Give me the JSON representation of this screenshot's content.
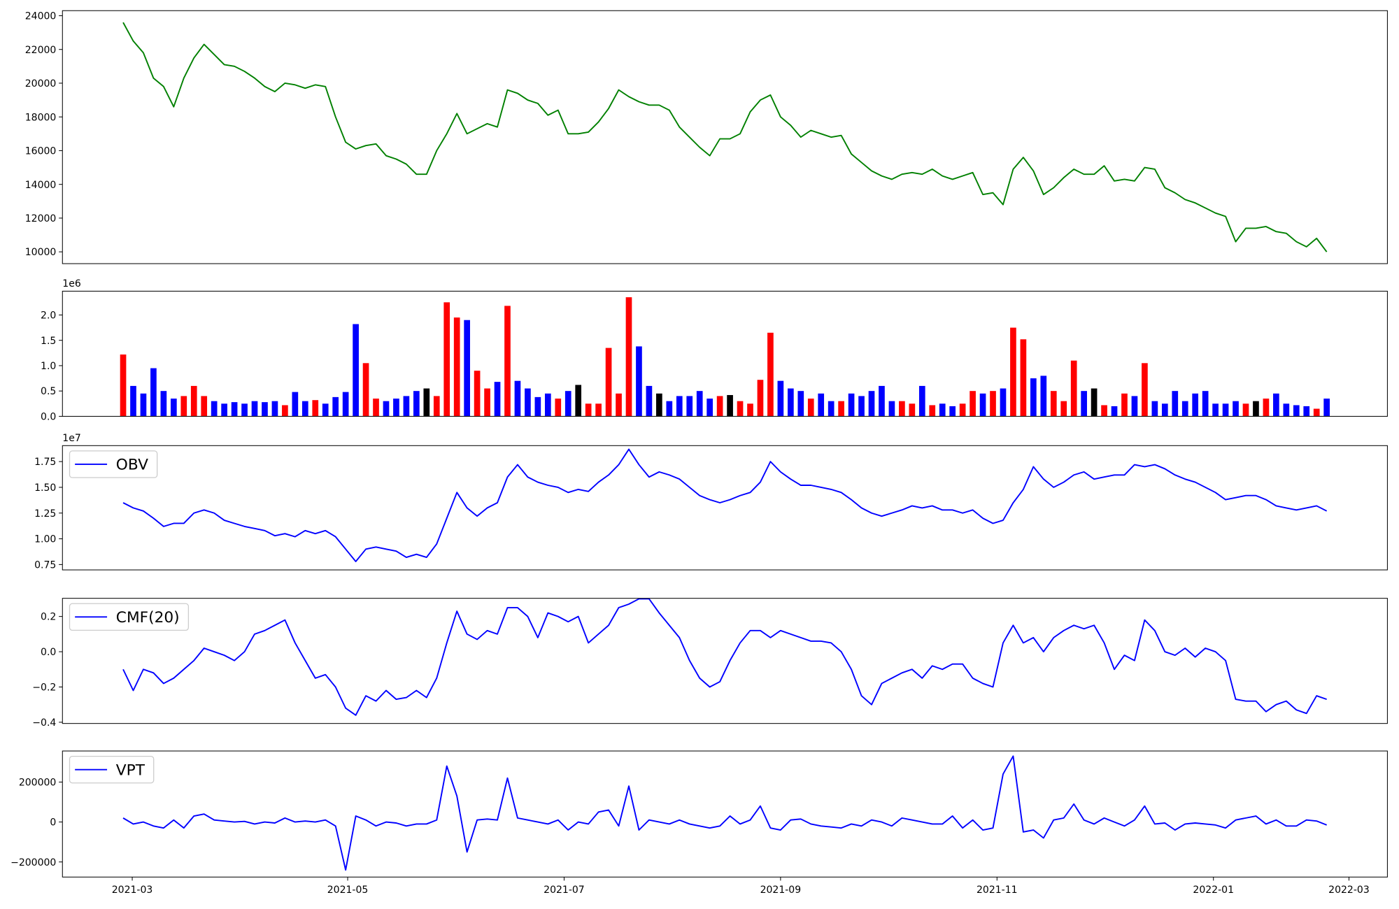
{
  "chart_data": [
    {
      "type": "line",
      "series": [
        {
          "color": "green",
          "values": [
            23600,
            22500,
            21800,
            20300,
            19800,
            18600,
            20300,
            21500,
            22300,
            21700,
            21100,
            21000,
            20700,
            20300,
            19800,
            19500,
            20000,
            19900,
            19700,
            19900,
            19800,
            18000,
            16500,
            16100,
            16300,
            16400,
            15700,
            15500,
            15200,
            14600,
            14600,
            16000,
            17000,
            18200,
            17000,
            17300,
            17600,
            17400,
            19600,
            19400,
            19000,
            18800,
            18100,
            18400,
            17000,
            17000,
            17100,
            17700,
            18500,
            19600,
            19200,
            18900,
            18700,
            18700,
            18400,
            17400,
            16800,
            16200,
            15700,
            16700,
            16700,
            17000,
            18300,
            19000,
            19300,
            18000,
            17500,
            16800,
            17200,
            17000,
            16800,
            16900,
            15800,
            15300,
            14800,
            14500,
            14300,
            14600,
            14700,
            14600,
            14900,
            14500,
            14300,
            14500,
            14700,
            13400,
            13500,
            12800,
            14900,
            15600,
            14800,
            13400,
            13800,
            14400,
            14900,
            14600,
            14600,
            15100,
            14200,
            14300,
            14200,
            15000,
            14900,
            13800,
            13500,
            13100,
            12900,
            12600,
            12300,
            12100,
            10600,
            11400,
            11400,
            11500,
            11200,
            11100,
            10600,
            10300,
            10800,
            10000
          ]
        }
      ],
      "xlim": [
        -6,
        125
      ],
      "ylim": [
        9300,
        24300
      ],
      "yticks": [
        10000,
        12000,
        14000,
        16000,
        18000,
        20000,
        22000,
        24000
      ]
    },
    {
      "type": "bar",
      "offset_label": "1e6",
      "values": [
        1.22,
        0.6,
        0.45,
        0.95,
        0.5,
        0.35,
        0.4,
        0.6,
        0.4,
        0.3,
        0.25,
        0.28,
        0.25,
        0.3,
        0.28,
        0.3,
        0.22,
        0.48,
        0.3,
        0.32,
        0.25,
        0.38,
        0.48,
        1.82,
        1.05,
        0.35,
        0.3,
        0.35,
        0.4,
        0.5,
        0.55,
        0.4,
        2.25,
        1.95,
        1.9,
        0.9,
        0.55,
        0.68,
        2.18,
        0.7,
        0.55,
        0.38,
        0.45,
        0.35,
        0.5,
        0.62,
        0.25,
        0.25,
        1.35,
        0.45,
        2.35,
        1.38,
        0.6,
        0.45,
        0.3,
        0.4,
        0.4,
        0.5,
        0.35,
        0.4,
        0.42,
        0.3,
        0.25,
        0.72,
        1.65,
        0.7,
        0.55,
        0.5,
        0.35,
        0.45,
        0.3,
        0.3,
        0.45,
        0.4,
        0.5,
        0.6,
        0.3,
        0.3,
        0.25,
        0.6,
        0.22,
        0.25,
        0.2,
        0.25,
        0.5,
        0.45,
        0.5,
        0.55,
        1.75,
        1.52,
        0.75,
        0.8,
        0.5,
        0.3,
        1.1,
        0.5,
        0.55,
        0.22,
        0.2,
        0.45,
        0.4,
        1.05,
        0.3,
        0.25,
        0.5,
        0.3,
        0.45,
        0.5,
        0.25,
        0.25,
        0.3,
        0.25,
        0.3,
        0.35,
        0.45,
        0.25,
        0.22,
        0.2,
        0.15,
        0.35
      ],
      "colors": [
        "red",
        "blue",
        "blue",
        "blue",
        "blue",
        "blue",
        "red",
        "red",
        "red",
        "blue",
        "blue",
        "blue",
        "blue",
        "blue",
        "blue",
        "blue",
        "red",
        "blue",
        "blue",
        "red",
        "blue",
        "blue",
        "blue",
        "blue",
        "red",
        "red",
        "blue",
        "blue",
        "blue",
        "blue",
        "black",
        "red",
        "red",
        "red",
        "blue",
        "red",
        "red",
        "blue",
        "red",
        "blue",
        "blue",
        "blue",
        "blue",
        "red",
        "blue",
        "black",
        "red",
        "red",
        "red",
        "red",
        "red",
        "blue",
        "blue",
        "black",
        "blue",
        "blue",
        "blue",
        "blue",
        "blue",
        "red",
        "black",
        "red",
        "red",
        "red",
        "red",
        "blue",
        "blue",
        "blue",
        "red",
        "blue",
        "blue",
        "red",
        "blue",
        "blue",
        "blue",
        "blue",
        "blue",
        "red",
        "red",
        "blue",
        "red",
        "blue",
        "blue",
        "red",
        "red",
        "blue",
        "red",
        "blue",
        "red",
        "red",
        "blue",
        "blue",
        "red",
        "red",
        "red",
        "blue",
        "black",
        "red",
        "blue",
        "red",
        "blue",
        "red",
        "blue",
        "blue",
        "blue",
        "blue",
        "blue",
        "blue",
        "blue",
        "blue",
        "blue",
        "red",
        "black",
        "red",
        "blue",
        "blue",
        "blue",
        "blue",
        "red",
        "blue"
      ],
      "xlim": [
        -6,
        125
      ],
      "ylim": [
        0,
        2.47
      ],
      "yticks": [
        {
          "value": 0,
          "label": "0.0"
        },
        0.5,
        {
          "value": 1,
          "label": "1.0"
        },
        1.5,
        {
          "value": 2,
          "label": "2.0"
        }
      ]
    },
    {
      "type": "line",
      "offset_label": "1e7",
      "legend": "upper left",
      "series": [
        {
          "name": "OBV",
          "color": "blue",
          "values": [
            1.35,
            1.3,
            1.27,
            1.2,
            1.12,
            1.15,
            1.15,
            1.25,
            1.28,
            1.25,
            1.18,
            1.15,
            1.12,
            1.1,
            1.08,
            1.03,
            1.05,
            1.02,
            1.08,
            1.05,
            1.08,
            1.02,
            0.9,
            0.78,
            0.9,
            0.92,
            0.9,
            0.88,
            0.82,
            0.85,
            0.82,
            0.95,
            1.2,
            1.45,
            1.3,
            1.22,
            1.3,
            1.35,
            1.6,
            1.72,
            1.6,
            1.55,
            1.52,
            1.5,
            1.45,
            1.48,
            1.46,
            1.55,
            1.62,
            1.72,
            1.87,
            1.72,
            1.6,
            1.65,
            1.62,
            1.58,
            1.5,
            1.42,
            1.38,
            1.35,
            1.38,
            1.42,
            1.45,
            1.55,
            1.75,
            1.65,
            1.58,
            1.52,
            1.52,
            1.5,
            1.48,
            1.45,
            1.38,
            1.3,
            1.25,
            1.22,
            1.25,
            1.28,
            1.32,
            1.3,
            1.32,
            1.28,
            1.28,
            1.25,
            1.28,
            1.2,
            1.15,
            1.18,
            1.35,
            1.48,
            1.7,
            1.58,
            1.5,
            1.55,
            1.62,
            1.65,
            1.58,
            1.6,
            1.62,
            1.62,
            1.72,
            1.7,
            1.72,
            1.68,
            1.62,
            1.58,
            1.55,
            1.5,
            1.45,
            1.38,
            1.4,
            1.42,
            1.42,
            1.38,
            1.32,
            1.3,
            1.28,
            1.3,
            1.32,
            1.27
          ]
        }
      ],
      "xlim": [
        -6,
        125
      ],
      "ylim": [
        0.698,
        1.905
      ],
      "yticks": [
        0.75,
        {
          "value": 1,
          "label": "1.00"
        },
        1.25,
        {
          "value": 1.5,
          "label": "1.50"
        },
        1.75
      ]
    },
    {
      "type": "line",
      "legend": "upper left",
      "series": [
        {
          "name": "CMF(20)",
          "color": "blue",
          "values": [
            -0.1,
            -0.22,
            -0.1,
            -0.12,
            -0.18,
            -0.15,
            -0.1,
            -0.05,
            0.02,
            0.0,
            -0.02,
            -0.05,
            0.0,
            0.1,
            0.12,
            0.15,
            0.18,
            0.05,
            -0.05,
            -0.15,
            -0.13,
            -0.2,
            -0.32,
            -0.36,
            -0.25,
            -0.28,
            -0.22,
            -0.27,
            -0.26,
            -0.22,
            -0.26,
            -0.15,
            0.05,
            0.23,
            0.1,
            0.07,
            0.12,
            0.1,
            0.25,
            0.25,
            0.2,
            0.08,
            0.22,
            0.2,
            0.17,
            0.2,
            0.05,
            0.1,
            0.15,
            0.25,
            0.27,
            0.3,
            0.3,
            0.22,
            0.15,
            0.08,
            -0.05,
            -0.15,
            -0.2,
            -0.17,
            -0.05,
            0.05,
            0.12,
            0.12,
            0.08,
            0.12,
            0.1,
            0.08,
            0.06,
            0.06,
            0.05,
            0.0,
            -0.1,
            -0.25,
            -0.3,
            -0.18,
            -0.15,
            -0.12,
            -0.1,
            -0.15,
            -0.08,
            -0.1,
            -0.07,
            -0.07,
            -0.15,
            -0.18,
            -0.2,
            0.05,
            0.15,
            0.05,
            0.08,
            0.0,
            0.08,
            0.12,
            0.15,
            0.13,
            0.15,
            0.05,
            -0.1,
            -0.02,
            -0.05,
            0.18,
            0.12,
            0.0,
            -0.02,
            0.02,
            -0.03,
            0.02,
            0.0,
            -0.05,
            -0.27,
            -0.28,
            -0.28,
            -0.34,
            -0.3,
            -0.28,
            -0.33,
            -0.35,
            -0.25,
            -0.27
          ]
        }
      ],
      "xlim": [
        -6,
        125
      ],
      "ylim": [
        -0.407,
        0.303
      ],
      "yticks": [
        {
          "value": -0.4,
          "label": "−0.4"
        },
        {
          "value": -0.2,
          "label": "−0.2"
        },
        {
          "value": 0,
          "label": "0.0"
        },
        0.2
      ]
    },
    {
      "type": "line",
      "legend": "upper left",
      "series": [
        {
          "name": "VPT",
          "color": "blue",
          "values": [
            20000,
            -10000,
            0,
            -20000,
            -30000,
            10000,
            -30000,
            30000,
            40000,
            10000,
            5000,
            0,
            3000,
            -10000,
            0,
            -5000,
            20000,
            0,
            5000,
            0,
            10000,
            -20000,
            -240000,
            30000,
            10000,
            -20000,
            0,
            -5000,
            -20000,
            -10000,
            -10000,
            10000,
            280000,
            130000,
            -150000,
            10000,
            15000,
            10000,
            220000,
            20000,
            10000,
            0,
            -10000,
            10000,
            -40000,
            0,
            -10000,
            50000,
            60000,
            -20000,
            180000,
            -40000,
            10000,
            0,
            -10000,
            10000,
            -10000,
            -20000,
            -30000,
            -20000,
            30000,
            -10000,
            10000,
            80000,
            -30000,
            -40000,
            10000,
            15000,
            -10000,
            -20000,
            -25000,
            -30000,
            -10000,
            -20000,
            10000,
            0,
            -20000,
            20000,
            10000,
            0,
            -10000,
            -10000,
            30000,
            -30000,
            10000,
            -40000,
            -30000,
            240000,
            330000,
            -50000,
            -40000,
            -80000,
            10000,
            20000,
            90000,
            10000,
            -10000,
            20000,
            0,
            -20000,
            10000,
            80000,
            -10000,
            -5000,
            -40000,
            -10000,
            -5000,
            -10000,
            -15000,
            -30000,
            10000,
            20000,
            30000,
            -10000,
            10000,
            -20000,
            -20000,
            10000,
            5000,
            -15000
          ]
        }
      ],
      "xlim": [
        -6,
        125
      ],
      "ylim": [
        -275556,
        355556
      ],
      "yticks": [
        {
          "value": -200000,
          "label": "−200000"
        },
        0,
        200000
      ],
      "xticks": [
        {
          "value": 0.9,
          "label": "2021-03"
        },
        {
          "value": 22.2,
          "label": "2021-05"
        },
        {
          "value": 43.6,
          "label": "2021-07"
        },
        {
          "value": 65,
          "label": "2021-09"
        },
        {
          "value": 86.4,
          "label": "2021-11"
        },
        {
          "value": 107.8,
          "label": "2022-01"
        },
        {
          "value": 121.2,
          "label": "2022-03"
        }
      ]
    }
  ]
}
